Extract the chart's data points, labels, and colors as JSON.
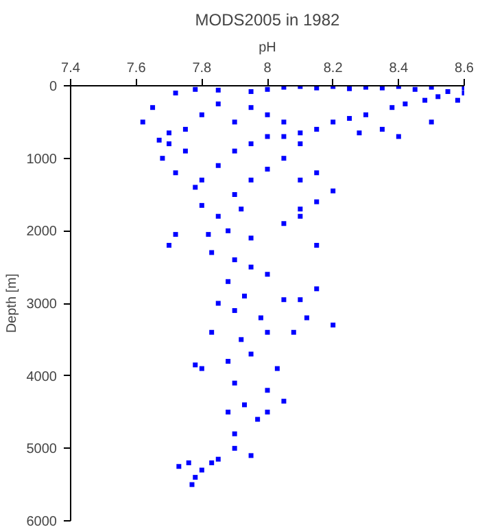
{
  "chart_data": {
    "type": "scatter",
    "title": "MODS2005 in 1982",
    "xlabel": "pH",
    "ylabel": "Depth [m]",
    "xlim": [
      7.4,
      8.6
    ],
    "xticks": [
      7.4,
      7.6,
      7.8,
      8,
      8.2,
      8.4,
      8.6
    ],
    "ylim": [
      6000,
      0
    ],
    "yticks": [
      0,
      1000,
      2000,
      3000,
      4000,
      5000,
      6000
    ],
    "grid": false,
    "marker": "square",
    "series": [
      {
        "color": "#0000ff",
        "x": [
          8.05,
          8.1,
          8.15,
          8.2,
          8.25,
          8.3,
          8.35,
          8.4,
          8.45,
          8.5,
          8.55,
          8.6,
          8.6,
          8.58,
          8.52,
          8.48,
          8.42,
          8.38,
          8.3,
          8.25,
          8.2,
          8.15,
          8.1,
          8.05,
          8.35,
          8.28,
          8.4,
          8.5,
          7.72,
          7.78,
          7.85,
          7.95,
          8.0,
          7.65,
          7.62,
          7.67,
          7.7,
          7.75,
          7.68,
          7.72,
          7.78,
          7.8,
          7.85,
          7.9,
          7.95,
          8.0,
          7.9,
          7.8,
          7.85,
          7.95,
          8.0,
          8.05,
          7.75,
          7.7,
          8.1,
          8.05,
          8.0,
          7.95,
          7.9,
          7.92,
          7.85,
          7.8,
          8.1,
          8.15,
          8.2,
          8.15,
          8.1,
          8.05,
          7.88,
          7.82,
          7.95,
          8.1,
          7.83,
          7.9,
          7.95,
          8.0,
          7.88,
          7.93,
          8.05,
          8.1,
          7.85,
          7.9,
          7.98,
          8.12,
          7.83,
          7.92,
          8.0,
          8.08,
          7.95,
          7.88,
          8.03,
          7.8,
          7.9,
          8.0,
          7.93,
          7.88,
          7.97,
          8.0,
          8.05,
          7.72,
          7.78,
          7.7,
          8.15,
          8.2,
          8.15,
          7.9,
          7.9,
          7.95,
          7.76,
          7.8,
          7.83,
          7.85,
          7.78,
          7.77,
          7.73
        ],
        "values": [
          20,
          10,
          30,
          10,
          40,
          20,
          30,
          10,
          50,
          20,
          80,
          30,
          100,
          200,
          150,
          200,
          250,
          300,
          400,
          450,
          500,
          600,
          650,
          700,
          600,
          650,
          700,
          500,
          100,
          50,
          60,
          80,
          50,
          300,
          500,
          750,
          650,
          900,
          1000,
          1200,
          1400,
          1300,
          1100,
          900,
          800,
          700,
          500,
          400,
          250,
          300,
          400,
          500,
          600,
          800,
          800,
          1000,
          1150,
          1300,
          1500,
          1700,
          1800,
          1650,
          1300,
          1200,
          1450,
          1600,
          1800,
          1900,
          2000,
          2050,
          2100,
          1700,
          2300,
          2400,
          2500,
          2600,
          2700,
          2900,
          2950,
          2950,
          3000,
          3100,
          3200,
          3200,
          3400,
          3500,
          3400,
          3400,
          3700,
          3800,
          3900,
          3900,
          4100,
          4200,
          4400,
          4500,
          4600,
          4500,
          4350,
          2050,
          3850,
          2200,
          2800,
          3300,
          2200,
          4800,
          5000,
          5100,
          5200,
          5300,
          5200,
          5150,
          5400,
          5500,
          5250
        ]
      }
    ]
  }
}
